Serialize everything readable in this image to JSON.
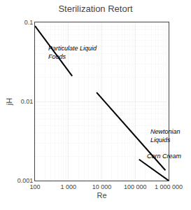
{
  "chart_data": {
    "type": "line",
    "title": "Sterilization Retort",
    "xlabel": "Re",
    "ylabel": "jH",
    "log": true,
    "grid": true,
    "xlim": [
      100,
      1000000
    ],
    "ylim": [
      0.001,
      0.1
    ],
    "xticks": [
      100,
      {
        "value": 1000,
        "label": "1 000"
      },
      {
        "value": 10000,
        "label": "10 000"
      },
      {
        "value": 100000,
        "label": "100 000"
      },
      {
        "value": 1000000,
        "label": "1 000 000"
      }
    ],
    "yticks": [
      0.001,
      0.01,
      0.1
    ],
    "series": [
      {
        "x": [
          100,
          1300
        ],
        "values": [
          0.09,
          0.021
        ],
        "color": "#000000"
      },
      {
        "x": [
          7000,
          800000
        ],
        "values": [
          0.013,
          0.00135
        ],
        "color": "#000000"
      },
      {
        "x": [
          130000,
          1000000
        ],
        "values": [
          0.00185,
          0.001
        ],
        "color": "#000000"
      }
    ],
    "annotations": [
      {
        "text": "Particulate Liquid\nFoods",
        "x": 230,
        "y": 0.042
      },
      {
        "text": "Newtonian\nLiquids",
        "x": 260000,
        "y": 0.0028
      },
      {
        "text": "Corn Cream",
        "x": 200000,
        "y": 0.00235
      }
    ]
  }
}
